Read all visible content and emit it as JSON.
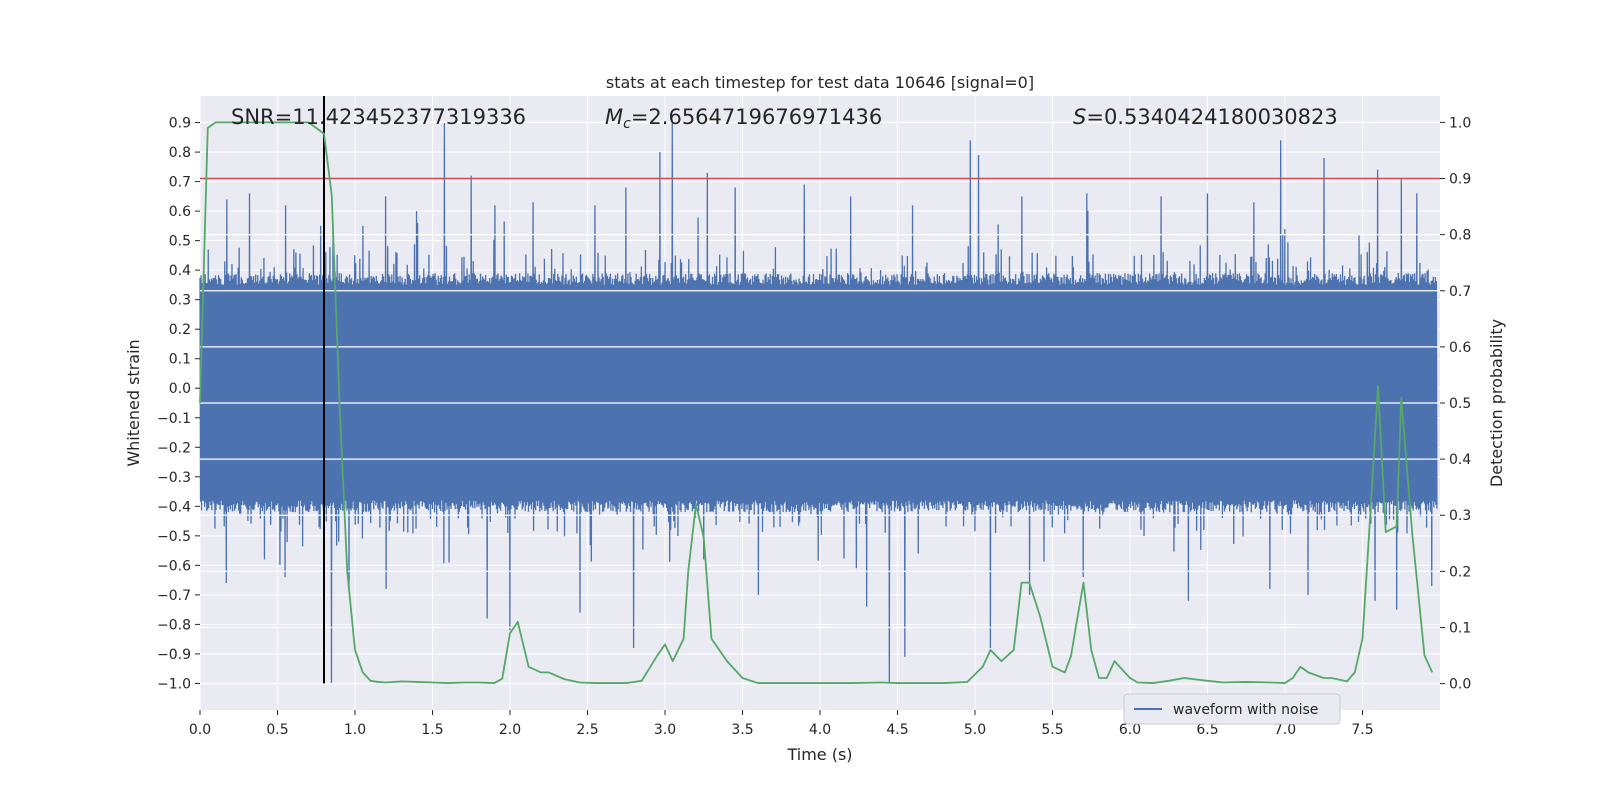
{
  "chart_data": {
    "type": "line",
    "title": "stats at each timestep for test data 10646 [signal=0]",
    "xlabel": "Time (s)",
    "ylabel_left": "Whitened strain",
    "ylabel_right": "Detection probability",
    "xlim": [
      0.0,
      8.0
    ],
    "ylim_left": [
      -1.09,
      0.99
    ],
    "ylim_right": [
      -0.047,
      1.047
    ],
    "x_ticks": [
      0.0,
      0.5,
      1.0,
      1.5,
      2.0,
      2.5,
      3.0,
      3.5,
      4.0,
      4.5,
      5.0,
      5.5,
      6.0,
      6.5,
      7.0,
      7.5
    ],
    "x_tick_labels": [
      "0.0",
      "0.5",
      "1.0",
      "1.5",
      "2.0",
      "2.5",
      "3.0",
      "3.5",
      "4.0",
      "4.5",
      "5.0",
      "5.5",
      "6.0",
      "6.5",
      "7.0",
      "7.5"
    ],
    "y_left_ticks": [
      0.9,
      0.8,
      0.7,
      0.6,
      0.5,
      0.4,
      0.3,
      0.2,
      0.1,
      0.0,
      -0.1,
      -0.2,
      -0.3,
      -0.4,
      -0.5,
      -0.6,
      -0.7,
      -0.8,
      -0.9,
      -1.0
    ],
    "y_left_tick_labels": [
      "0.9",
      "0.8",
      "0.7",
      "0.6",
      "0.5",
      "0.4",
      "0.3",
      "0.2",
      "0.1",
      "0.0",
      "−0.1",
      "−0.2",
      "−0.3",
      "−0.4",
      "−0.5",
      "−0.6",
      "−0.7",
      "−0.8",
      "−0.9",
      "−1.0"
    ],
    "y_right_ticks": [
      1.0,
      0.9,
      0.8,
      0.7,
      0.6,
      0.5,
      0.4,
      0.3,
      0.2,
      0.1,
      0.0
    ],
    "y_right_tick_labels": [
      "1.0",
      "0.9",
      "0.8",
      "0.7",
      "0.6",
      "0.5",
      "0.4",
      "0.3",
      "0.2",
      "0.1",
      "0.0"
    ],
    "annotations": {
      "snr": "SNR=11.423452377319336",
      "mc_symbol": "M",
      "mc_subscript": "c",
      "mc_value": "=2.6564719676971436",
      "s_symbol": "S",
      "s_value": "=0.5340424180030823"
    },
    "threshold_probability": 0.9,
    "marker_time": 0.8,
    "legend": {
      "label": "waveform with noise",
      "placement": "lower-right"
    },
    "waveform": {
      "name": "waveform with noise",
      "color": "#4c72b0",
      "core_amplitude": 0.35,
      "upper_peaks": [
        [
          0.05,
          0.47
        ],
        [
          0.17,
          0.64
        ],
        [
          0.32,
          0.66
        ],
        [
          0.55,
          0.62
        ],
        [
          0.62,
          0.46
        ],
        [
          0.78,
          0.55
        ],
        [
          0.86,
          0.55
        ],
        [
          1.05,
          0.55
        ],
        [
          1.2,
          0.65
        ],
        [
          1.4,
          0.6
        ],
        [
          1.58,
          0.9
        ],
        [
          1.75,
          0.72
        ],
        [
          1.9,
          0.62
        ],
        [
          2.15,
          0.63
        ],
        [
          2.55,
          0.62
        ],
        [
          2.75,
          0.68
        ],
        [
          2.97,
          0.8
        ],
        [
          3.05,
          0.9
        ],
        [
          3.27,
          0.73
        ],
        [
          3.45,
          0.68
        ],
        [
          3.9,
          0.69
        ],
        [
          4.2,
          0.65
        ],
        [
          4.6,
          0.62
        ],
        [
          4.97,
          0.84
        ],
        [
          5.02,
          0.79
        ],
        [
          5.3,
          0.65
        ],
        [
          5.72,
          0.66
        ],
        [
          6.2,
          0.65
        ],
        [
          6.5,
          0.66
        ],
        [
          6.8,
          0.63
        ],
        [
          6.97,
          0.84
        ],
        [
          7.25,
          0.78
        ],
        [
          7.6,
          0.74
        ],
        [
          7.75,
          0.71
        ],
        [
          7.85,
          0.66
        ]
      ],
      "lower_peaks": [
        [
          0.17,
          -0.66
        ],
        [
          0.55,
          -0.64
        ],
        [
          0.85,
          -1.0
        ],
        [
          0.96,
          -0.68
        ],
        [
          1.2,
          -0.68
        ],
        [
          1.85,
          -0.78
        ],
        [
          2.0,
          -0.82
        ],
        [
          2.45,
          -0.76
        ],
        [
          2.8,
          -0.88
        ],
        [
          3.25,
          -0.58
        ],
        [
          3.6,
          -0.7
        ],
        [
          4.3,
          -0.74
        ],
        [
          4.45,
          -1.0
        ],
        [
          4.55,
          -0.91
        ],
        [
          5.1,
          -0.88
        ],
        [
          5.35,
          -0.7
        ],
        [
          5.7,
          -0.64
        ],
        [
          6.38,
          -0.72
        ],
        [
          6.9,
          -0.68
        ],
        [
          7.15,
          -0.7
        ],
        [
          7.58,
          -0.72
        ],
        [
          7.72,
          -0.75
        ],
        [
          7.95,
          -0.67
        ]
      ]
    },
    "detection_probability": {
      "name": "detection probability",
      "color": "#55a868",
      "x": [
        0.0,
        0.05,
        0.1,
        0.2,
        0.3,
        0.4,
        0.5,
        0.6,
        0.7,
        0.75,
        0.8,
        0.85,
        0.9,
        0.95,
        1.0,
        1.05,
        1.1,
        1.15,
        1.2,
        1.3,
        1.4,
        1.5,
        1.6,
        1.7,
        1.8,
        1.9,
        1.95,
        2.0,
        2.05,
        2.12,
        2.2,
        2.25,
        2.35,
        2.45,
        2.55,
        2.65,
        2.75,
        2.85,
        2.95,
        3.0,
        3.05,
        3.12,
        3.15,
        3.2,
        3.25,
        3.3,
        3.4,
        3.5,
        3.6,
        3.8,
        4.0,
        4.2,
        4.4,
        4.5,
        4.6,
        4.8,
        4.95,
        5.05,
        5.1,
        5.17,
        5.25,
        5.3,
        5.35,
        5.42,
        5.5,
        5.58,
        5.62,
        5.65,
        5.7,
        5.75,
        5.8,
        5.85,
        5.9,
        6.0,
        6.05,
        6.15,
        6.25,
        6.35,
        6.5,
        6.6,
        6.75,
        6.9,
        7.0,
        7.05,
        7.1,
        7.15,
        7.25,
        7.3,
        7.4,
        7.45,
        7.5,
        7.55,
        7.6,
        7.65,
        7.72,
        7.75,
        7.82,
        7.9,
        7.95
      ],
      "values": [
        0.5,
        0.99,
        1.0,
        1.0,
        1.0,
        1.0,
        1.0,
        1.0,
        1.0,
        0.99,
        0.98,
        0.87,
        0.5,
        0.2,
        0.06,
        0.02,
        0.005,
        0.003,
        0.002,
        0.004,
        0.003,
        0.002,
        0.001,
        0.002,
        0.002,
        0.001,
        0.009,
        0.09,
        0.11,
        0.03,
        0.02,
        0.02,
        0.008,
        0.002,
        0.001,
        0.001,
        0.001,
        0.005,
        0.05,
        0.07,
        0.04,
        0.08,
        0.2,
        0.32,
        0.26,
        0.08,
        0.04,
        0.01,
        0.001,
        0.001,
        0.001,
        0.001,
        0.002,
        0.001,
        0.001,
        0.001,
        0.003,
        0.03,
        0.06,
        0.04,
        0.06,
        0.18,
        0.18,
        0.12,
        0.03,
        0.02,
        0.05,
        0.1,
        0.18,
        0.06,
        0.01,
        0.01,
        0.04,
        0.01,
        0.002,
        0.001,
        0.005,
        0.01,
        0.005,
        0.002,
        0.003,
        0.002,
        0.001,
        0.01,
        0.03,
        0.02,
        0.01,
        0.01,
        0.004,
        0.02,
        0.08,
        0.3,
        0.53,
        0.27,
        0.28,
        0.51,
        0.27,
        0.05,
        0.02
      ]
    },
    "colors": {
      "plot_bg": "#eaeaf2",
      "grid": "#ffffff",
      "threshold": "#c44e52",
      "marker": "#000000"
    }
  }
}
